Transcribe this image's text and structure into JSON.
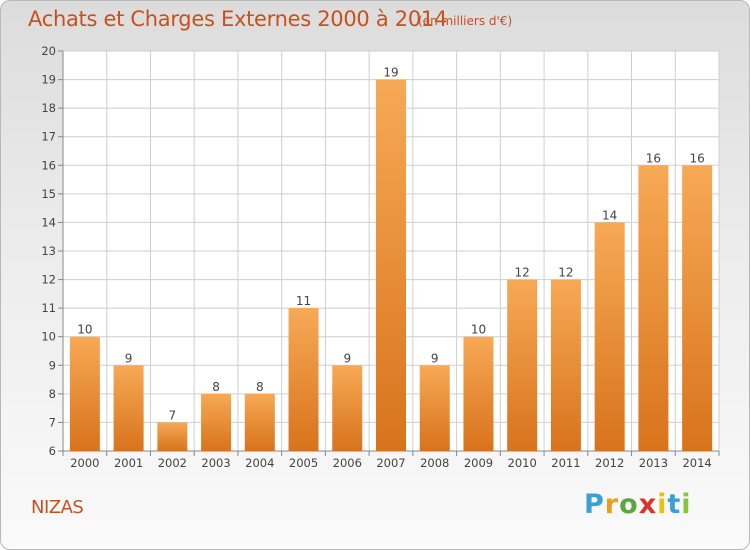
{
  "chart_data": {
    "type": "bar",
    "title": "Achats et Charges Externes 2000 à 2014",
    "subtitle": "(en milliers d'€)",
    "categories": [
      "2000",
      "2001",
      "2002",
      "2003",
      "2004",
      "2005",
      "2006",
      "2007",
      "2008",
      "2009",
      "2010",
      "2011",
      "2012",
      "2013",
      "2014"
    ],
    "values": [
      10,
      9,
      7,
      8,
      8,
      11,
      9,
      19,
      9,
      10,
      12,
      12,
      14,
      16,
      16
    ],
    "ylim": [
      6,
      20
    ],
    "yticks": [
      6,
      7,
      8,
      9,
      10,
      11,
      12,
      13,
      14,
      15,
      16,
      17,
      18,
      19,
      20
    ],
    "grid": true,
    "bar_color_top": "#f7a955",
    "bar_color_bottom": "#d8731c",
    "xlabel": "",
    "ylabel": ""
  },
  "location": "NIZAS",
  "brand": {
    "letters": [
      "P",
      "r",
      "o",
      "x",
      "i",
      "t",
      "i"
    ],
    "colors": [
      "#3aa0d8",
      "#e8a01c",
      "#5aa83c",
      "#d8342c",
      "#e8c01c",
      "#3aa0d8",
      "#8cc43c"
    ]
  }
}
